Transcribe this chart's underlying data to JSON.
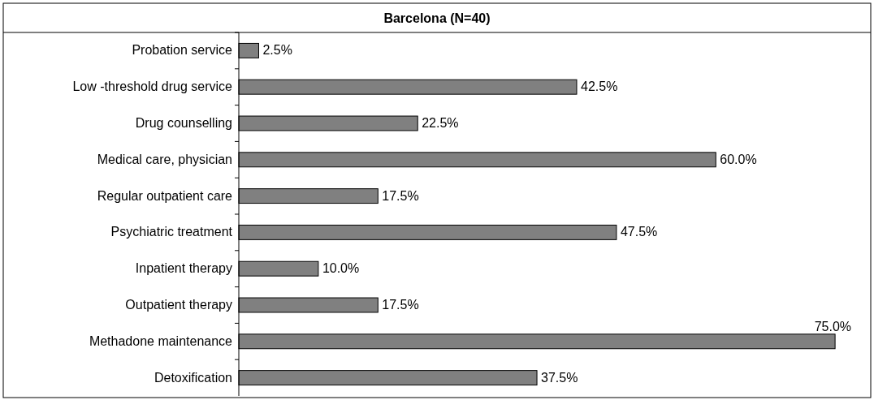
{
  "chart_data": {
    "type": "bar",
    "orientation": "horizontal",
    "title": "Barcelona (N=40)",
    "categories": [
      "Probation service",
      "Low -threshold drug service",
      "Drug counselling",
      "Medical care, physician",
      "Regular outpatient care",
      "Psychiatric treatment",
      "Inpatient therapy",
      "Outpatient therapy",
      "Methadone maintenance",
      "Detoxification"
    ],
    "values": [
      2.5,
      42.5,
      22.5,
      60.0,
      17.5,
      47.5,
      10.0,
      17.5,
      75.0,
      37.5
    ],
    "value_labels": [
      "2.5%",
      "42.5%",
      "22.5%",
      "60.0%",
      "17.5%",
      "47.5%",
      "10.0%",
      "17.5%",
      "75.0%",
      "37.5%"
    ],
    "color": "#808080",
    "grid": false
  }
}
